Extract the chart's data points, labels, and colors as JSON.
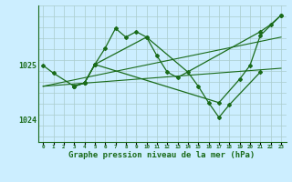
{
  "background_color": "#cceeff",
  "grid_color": "#aacccc",
  "line_color": "#1a6b1a",
  "xlabel": "Graphe pression niveau de la mer (hPa)",
  "xlabel_fontsize": 6.5,
  "ylabel_ticks": [
    1024,
    1025
  ],
  "xlim": [
    -0.5,
    23.5
  ],
  "ylim": [
    1023.6,
    1026.1
  ],
  "line1_x": [
    0,
    1,
    3,
    4,
    5,
    6,
    7,
    8,
    9,
    10,
    11,
    12,
    13,
    21,
    22,
    23
  ],
  "line1_y": [
    1025.0,
    1024.86,
    1024.62,
    1024.68,
    1025.02,
    1025.32,
    1025.68,
    1025.52,
    1025.62,
    1025.52,
    1025.18,
    1024.88,
    1024.78,
    1025.62,
    1025.75,
    1025.92
  ],
  "line2_x": [
    3,
    4,
    5,
    10,
    14,
    15,
    16,
    17,
    18,
    21
  ],
  "line2_y": [
    1024.62,
    1024.68,
    1025.02,
    1025.52,
    1024.88,
    1024.62,
    1024.32,
    1024.05,
    1024.28,
    1024.88
  ],
  "line3_x": [
    3,
    4,
    5,
    17,
    19,
    20,
    21,
    23
  ],
  "line3_y": [
    1024.62,
    1024.68,
    1025.02,
    1024.32,
    1024.75,
    1025.0,
    1025.55,
    1025.92
  ],
  "trend1_x": [
    0,
    23
  ],
  "trend1_y": [
    1024.62,
    1025.52
  ],
  "trend2_x": [
    0,
    23
  ],
  "trend2_y": [
    1024.62,
    1024.95
  ]
}
